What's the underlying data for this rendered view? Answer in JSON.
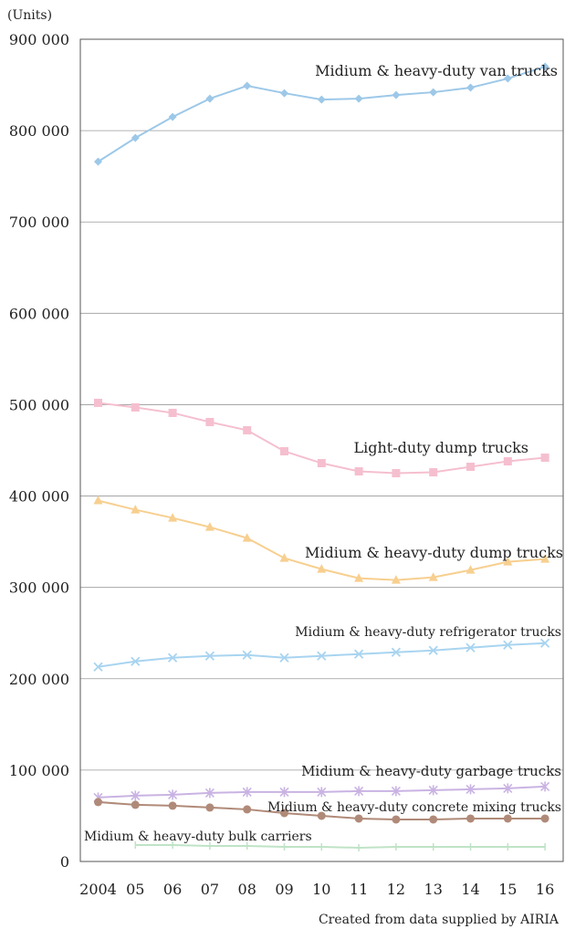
{
  "chart_data": {
    "type": "line",
    "unit_label": "(Units)",
    "source_note": "Created from data supplied by AIRIA",
    "x": [
      "2004",
      "05",
      "06",
      "07",
      "08",
      "09",
      "10",
      "11",
      "12",
      "13",
      "14",
      "15",
      "16"
    ],
    "ylim": [
      0,
      900000
    ],
    "y_ticks": [
      "0",
      "100 000",
      "200 000",
      "300 000",
      "400 000",
      "500 000",
      "600 000",
      "700 000",
      "800 000",
      "900 000"
    ],
    "grid": true,
    "series": [
      {
        "name": "Midium & heavy-duty van trucks",
        "marker": "diamond",
        "color": "#9dc8e8",
        "values": [
          766000,
          792000,
          815000,
          835000,
          849000,
          841000,
          834000,
          835000,
          839000,
          842000,
          847000,
          857000,
          870000
        ]
      },
      {
        "name": "Light-duty dump trucks",
        "marker": "square",
        "color": "#f5bfcf",
        "values": [
          502000,
          497000,
          491000,
          481000,
          472000,
          449000,
          436000,
          427000,
          425000,
          426000,
          432000,
          438000,
          442000
        ]
      },
      {
        "name": "Midium & heavy-duty dump trucks",
        "marker": "triangle",
        "color": "#f7cf8f",
        "values": [
          395000,
          385000,
          376000,
          366000,
          354000,
          332000,
          320000,
          310000,
          308000,
          311000,
          319000,
          328000,
          331000
        ]
      },
      {
        "name": "Midium & heavy-duty refrigerator trucks",
        "marker": "x",
        "color": "#a8d4f0",
        "values": [
          213000,
          219000,
          223000,
          225000,
          226000,
          223000,
          225000,
          227000,
          229000,
          231000,
          234000,
          237000,
          239000
        ]
      },
      {
        "name": "Midium & heavy-duty garbage trucks",
        "marker": "star",
        "color": "#c9b3e3",
        "values": [
          70000,
          72000,
          73000,
          75000,
          76000,
          76000,
          76000,
          77000,
          77000,
          78000,
          79000,
          80000,
          82000
        ]
      },
      {
        "name": "Midium & heavy-duty concrete mixing trucks",
        "marker": "circle",
        "color": "#b08a78",
        "values": [
          65000,
          62000,
          61000,
          59000,
          57000,
          53000,
          50000,
          47000,
          46000,
          46000,
          47000,
          47000,
          47000
        ]
      },
      {
        "name": "Midium & heavy-duty bulk carriers",
        "marker": "plus",
        "color": "#bfe3c6",
        "values": [
          null,
          18000,
          18000,
          17000,
          17000,
          16000,
          16000,
          15000,
          16000,
          16000,
          16000,
          16000,
          16000
        ]
      }
    ]
  }
}
